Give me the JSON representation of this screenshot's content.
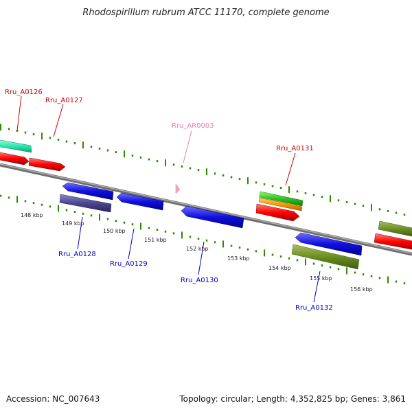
{
  "title": "Rhodospirillum rubrum ATCC 11170, complete genome",
  "accession": "Accession: NC_007643",
  "topology": "Topology: circular; Length: 4,352,825 bp; Genes: 3,861",
  "gene_labels": {
    "rru_a0126": "Rru_A0126",
    "rru_a0127": "Rru_A0127",
    "rru_ar0003": "Rru_AR0003",
    "rru_a0131": "Rru_A0131",
    "rru_a0128": "Rru_A0128",
    "rru_a0129": "Rru_A0129",
    "rru_a0130": "Rru_A0130",
    "rru_a0132": "Rru_A0132"
  },
  "kbp_labels": [
    "148 kbp",
    "149 kbp",
    "150 kbp",
    "151 kbp",
    "152 kbp",
    "153 kbp",
    "154 kbp",
    "155 kbp",
    "156 kbp"
  ],
  "colors": {
    "forward_label": "#cc0000",
    "reverse_label": "#0000cc",
    "rna_label": "#e87fae",
    "tick": "#2d8a00"
  }
}
